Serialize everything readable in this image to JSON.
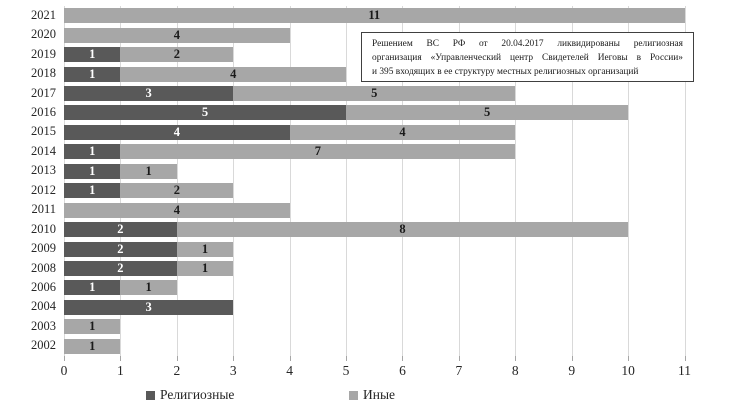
{
  "chart_data": {
    "type": "bar",
    "orientation": "horizontal",
    "stacked": true,
    "title": "",
    "xlabel": "",
    "ylabel": "",
    "grid": true,
    "xlim": [
      0,
      11
    ],
    "xticks": [
      "0",
      "1",
      "2",
      "3",
      "4",
      "5",
      "6",
      "7",
      "8",
      "9",
      "10",
      "11"
    ],
    "categories": [
      "2021",
      "2020",
      "2019",
      "2018",
      "2017",
      "2016",
      "2015",
      "2014",
      "2013",
      "2012",
      "2011",
      "2010",
      "2009",
      "2008",
      "2006",
      "2004",
      "2003",
      "2002"
    ],
    "series": [
      {
        "name": "Религиозные",
        "color": "#595959",
        "label_color": "#ffffff",
        "values": [
          0,
          0,
          1,
          1,
          3,
          5,
          4,
          1,
          1,
          1,
          0,
          2,
          2,
          2,
          1,
          3,
          0,
          0
        ]
      },
      {
        "name": "Иные",
        "color": "#a7a7a7",
        "label_color": "#1a1a1a",
        "values": [
          11,
          4,
          2,
          4,
          5,
          5,
          4,
          7,
          1,
          2,
          4,
          8,
          1,
          1,
          1,
          0,
          1,
          1
        ]
      }
    ],
    "legend_position": "bottom",
    "annotation": {
      "text": "Решением ВС РФ от 20.04.2017 ликвидированы религиозная организация «Управленческий центр Свидетелей Иеговы в России» и 395 входящих в ее структуру местных религиозных организаций",
      "lines": [
        "Решением ВС РФ от 20.04.2017 ликвидированы религиозная",
        "организация «Управленческий центр Свидетелей Иеговы в России»",
        "и 395 входящих в ее структуру местных религиозных организаций"
      ]
    },
    "colors": {
      "gridline": "#d9d9d9",
      "tick": "#a6a6a6",
      "axis_text": "#262626"
    }
  }
}
